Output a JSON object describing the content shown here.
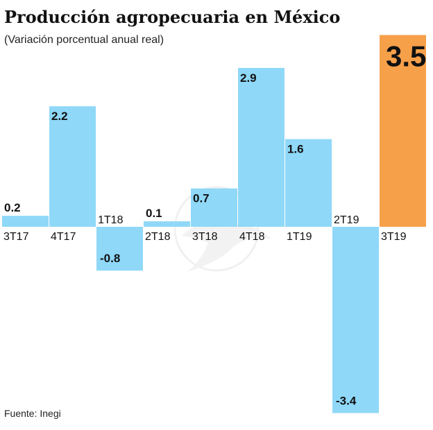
{
  "title": "Producción agropecuaria en México",
  "subtitle": "(Variación porcentual anual real)",
  "source": "Fuente: Inegi",
  "colors": {
    "normal": "#8fd8f8",
    "highlight": "#f7a04a"
  },
  "chart_data": {
    "type": "bar",
    "title": "Producción agropecuaria en México",
    "subtitle": "(Variación porcentual anual real)",
    "categories": [
      "3T17",
      "4T17",
      "1T18",
      "2T18",
      "3T18",
      "4T18",
      "1T19",
      "2T19",
      "3T19"
    ],
    "values": [
      0.2,
      2.2,
      -0.8,
      0.1,
      0.7,
      2.9,
      1.6,
      -3.4,
      3.5
    ],
    "value_labels": [
      "0.2",
      "2.2",
      "-0.8",
      "0.1",
      "0.7",
      "2.9",
      "1.6",
      "-3.4",
      "3.5"
    ],
    "highlight_index": 8,
    "grid": false,
    "legend": "none",
    "ylim": [
      -3.4,
      3.5
    ]
  }
}
